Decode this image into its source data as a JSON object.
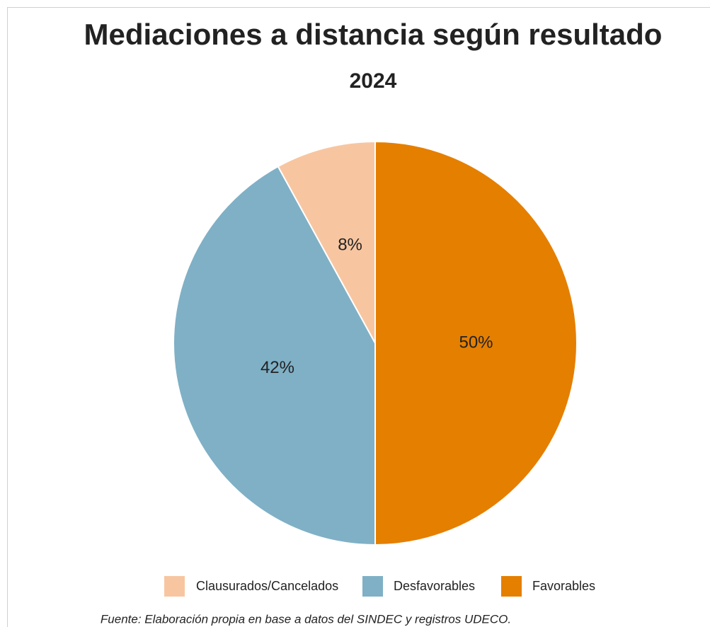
{
  "chart_data": {
    "type": "pie",
    "title": "Mediaciones a distancia según resultado",
    "subtitle": "2024",
    "categories": [
      "Clausurados/Cancelados",
      "Desfavorables",
      "Favorables"
    ],
    "values": [
      8,
      42,
      50
    ],
    "value_labels": [
      "8%",
      "42%",
      "50%"
    ],
    "colors": [
      "#f7c6a1",
      "#7fb0c6",
      "#e57f00"
    ],
    "source": "Fuente: Elaboración propia en base a datos del SINDEC y registros UDECO."
  }
}
